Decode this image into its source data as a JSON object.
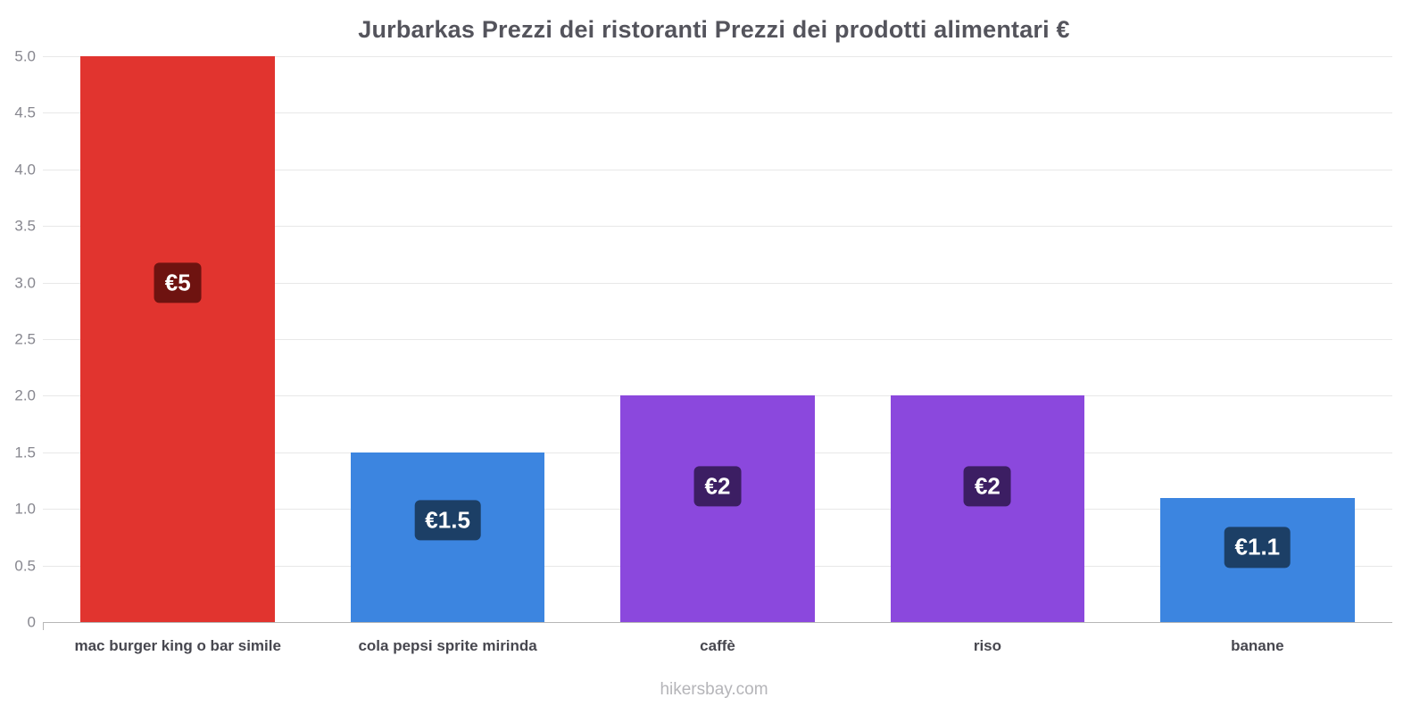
{
  "title": "Jurbarkas Prezzi dei ristoranti Prezzi dei prodotti alimentari €",
  "footer": "hikersbay.com",
  "chart_data": {
    "type": "bar",
    "title": "Jurbarkas Prezzi dei ristoranti Prezzi dei prodotti alimentari €",
    "xlabel": "",
    "ylabel": "",
    "ylim": [
      0,
      5
    ],
    "grid": true,
    "legend": false,
    "categories": [
      "mac burger king o bar simile",
      "cola pepsi sprite mirinda",
      "caffè",
      "riso",
      "banane"
    ],
    "values": [
      5,
      1.5,
      2,
      2,
      1.1
    ],
    "value_labels": [
      "€5",
      "€1.5",
      "€2",
      "€2",
      "€1.1"
    ],
    "bar_colors": [
      "#e1342f",
      "#3c85e0",
      "#8b48dd",
      "#8b48dd",
      "#3c85e0"
    ],
    "badge_colors": [
      "#6e1310",
      "#1c3f66",
      "#3c1e63",
      "#3c1e63",
      "#1c3f66"
    ],
    "yticks": [
      0,
      0.5,
      1,
      1.5,
      2,
      2.5,
      3,
      3.5,
      4,
      4.5,
      5
    ],
    "ytick_labels": [
      "0",
      "0.5",
      "1.0",
      "1.5",
      "2.0",
      "2.5",
      "3.0",
      "3.5",
      "4.0",
      "4.5",
      "5.0"
    ],
    "currency": "€",
    "source": "hikersbay.com"
  }
}
